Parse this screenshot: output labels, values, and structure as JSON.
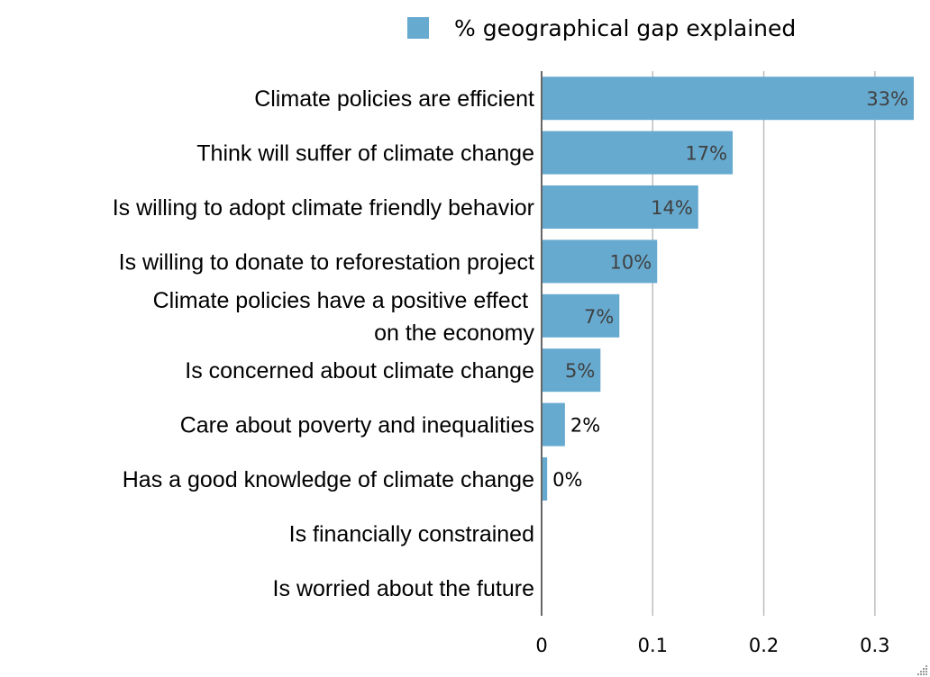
{
  "chart_data": {
    "type": "bar",
    "orientation": "horizontal",
    "categories": [
      "Climate policies are efficient",
      "Think will suffer of climate change",
      "Is willing to adopt climate friendly behavior",
      "Is willing to donate to reforestation project",
      "Climate policies have a positive effect \non the economy",
      "Is concerned about climate change",
      "Care about poverty and inequalities",
      "Has a good knowledge of climate change",
      "Is financially constrained",
      "Is worried about the future"
    ],
    "series": [
      {
        "name": "% geographical gap explained",
        "values": [
          0.335,
          0.172,
          0.141,
          0.104,
          0.07,
          0.053,
          0.021,
          0.005,
          null,
          null
        ],
        "labels": [
          "33%",
          "17%",
          "14%",
          "10%",
          "7%",
          "5%",
          "2%",
          "0%",
          "",
          ""
        ]
      }
    ],
    "xlim": [
      0,
      0.335
    ],
    "xticks": [
      0,
      0.1,
      0.2,
      0.3
    ],
    "xtick_labels": [
      "0",
      "0.1",
      "0.2",
      "0.3"
    ],
    "grid": true,
    "legend_position": "top",
    "bar_color": "#67aad0"
  }
}
